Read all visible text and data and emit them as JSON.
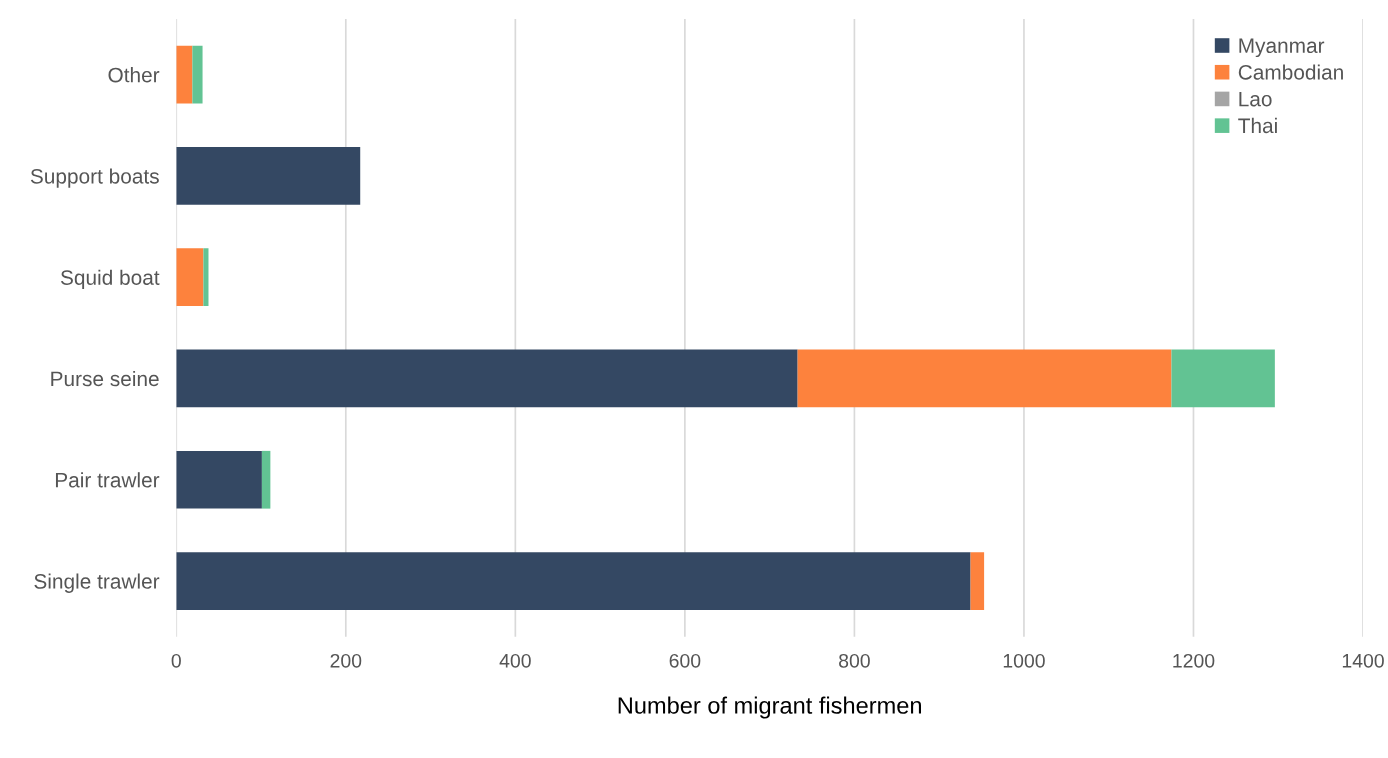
{
  "chart_data": {
    "type": "bar",
    "orientation": "horizontal",
    "stacked": true,
    "xlabel": "Number of migrant fishermen",
    "categories": [
      "Other",
      "Support boats",
      "Squid boat",
      "Purse seine",
      "Pair trawler",
      "Single trawler"
    ],
    "series": [
      {
        "name": "Myanmar",
        "color": "#344863",
        "values": [
          0,
          217,
          0,
          733,
          101,
          937
        ]
      },
      {
        "name": "Cambodian",
        "color": "#fd823d",
        "values": [
          19,
          0,
          32,
          441,
          0,
          16
        ]
      },
      {
        "name": "Lao",
        "color": "#a5a5a5",
        "values": [
          0,
          0,
          0,
          0,
          0,
          0
        ]
      },
      {
        "name": "Thai",
        "color": "#62c393",
        "values": [
          12,
          0,
          6,
          122,
          10,
          0
        ]
      }
    ],
    "xlim": [
      0,
      1400
    ],
    "xticks": [
      0,
      200,
      400,
      600,
      800,
      1000,
      1200,
      1400
    ],
    "grid": "x",
    "legend": "top right"
  }
}
